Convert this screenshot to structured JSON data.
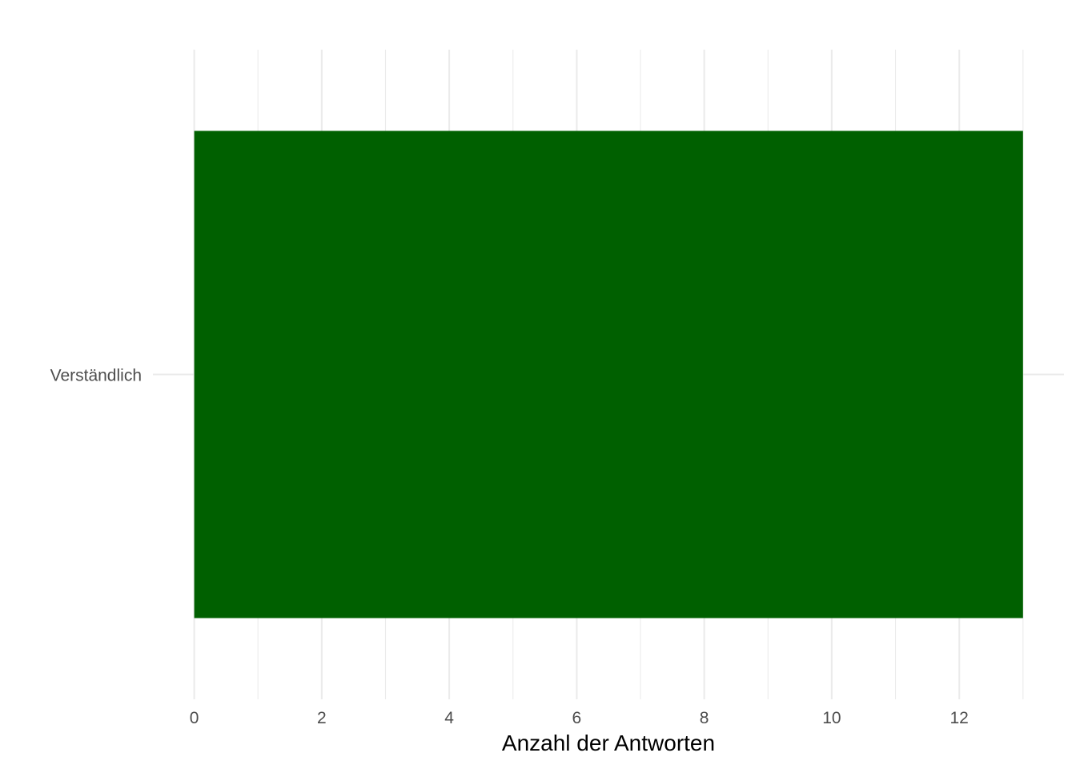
{
  "chart_data": {
    "type": "bar",
    "orientation": "horizontal",
    "categories": [
      "Verständlich"
    ],
    "values": [
      13
    ],
    "xlabel": "Anzahl der Antworten",
    "ylabel": "",
    "xlim": [
      0,
      13
    ],
    "x_ticks": [
      0,
      2,
      4,
      6,
      8,
      10,
      12
    ],
    "x_tick_labels": [
      "0",
      "2",
      "4",
      "6",
      "8",
      "10",
      "12"
    ],
    "grid": true,
    "bar_color": "#006000",
    "grid_color": "#ebebeb"
  }
}
